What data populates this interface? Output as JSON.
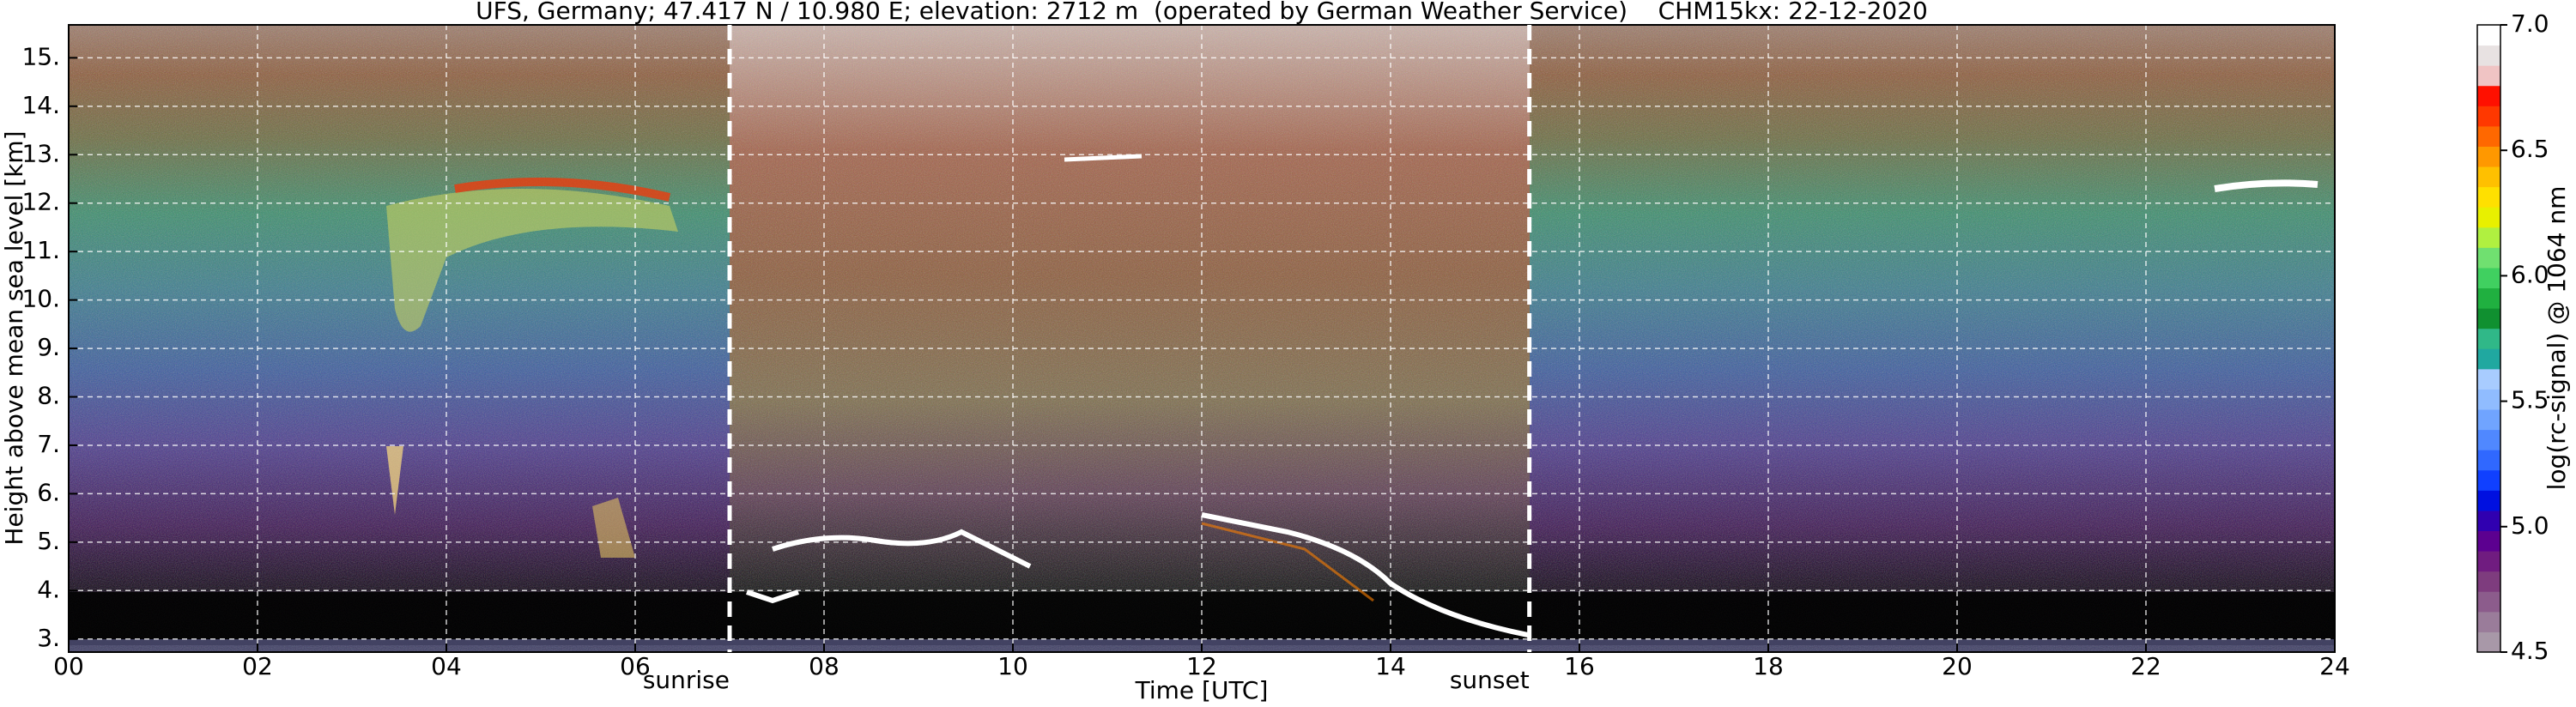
{
  "chart_data": {
    "type": "heatmap",
    "title": "UFS, Germany; 47.417 N / 10.980 E; elevation: 2712 m  (operated by German Weather Service)    CHM15kx: 22-12-2020",
    "xlabel": "Time [UTC]",
    "ylabel": "Height above mean sea level [km]",
    "xlim": [
      0,
      24
    ],
    "xticks": [
      {
        "value": 0,
        "label": "00"
      },
      {
        "value": 2,
        "label": "02"
      },
      {
        "value": 4,
        "label": "04"
      },
      {
        "value": 6,
        "label": "06"
      },
      {
        "value": 8,
        "label": "08"
      },
      10,
      12,
      14,
      16,
      18,
      20,
      22,
      24
    ],
    "ylim": [
      2.73,
      15.68
    ],
    "yticks": [
      {
        "value": 3,
        "label": "3."
      },
      {
        "value": 4,
        "label": "4."
      },
      {
        "value": 5,
        "label": "5."
      },
      {
        "value": 6,
        "label": "6."
      },
      {
        "value": 7,
        "label": "7."
      },
      {
        "value": 8,
        "label": "8."
      },
      {
        "value": 9,
        "label": "9."
      },
      {
        "value": 10,
        "label": "10."
      },
      {
        "value": 11,
        "label": "11."
      },
      {
        "value": 12,
        "label": "12."
      },
      {
        "value": 13,
        "label": "13."
      },
      {
        "value": 14,
        "label": "14."
      },
      {
        "value": 15,
        "label": "15."
      }
    ],
    "grid": true,
    "annotations": [
      {
        "text": "sunrise",
        "x": 7.0
      },
      {
        "text": "sunset",
        "x": 15.47
      }
    ],
    "colorbar": {
      "label": "log(rc-signal) @ 1064 nm",
      "lim": [
        4.5,
        7.0
      ],
      "ticks": [
        4.5,
        {
          "value": 5.0,
          "label": "5.0"
        },
        5.5,
        {
          "value": 6.0,
          "label": "6.0"
        },
        6.5,
        {
          "value": 7.0,
          "label": "7.0"
        }
      ],
      "colors": [
        "#a898a8",
        "#9a7c9a",
        "#8c5c8c",
        "#7e3c7e",
        "#701c80",
        "#5c0090",
        "#3000b0",
        "#0010e0",
        "#1040ff",
        "#3068ff",
        "#5088ff",
        "#70a4ff",
        "#90bcff",
        "#a8ccff",
        "#20a8a0",
        "#30b888",
        "#109030",
        "#20b040",
        "#40d060",
        "#70e070",
        "#b0f040",
        "#e8f000",
        "#ffe000",
        "#ffc000",
        "#ff9800",
        "#ff6800",
        "#ff3800",
        "#ff1000",
        "#f0c4c4",
        "#e8e2e2",
        "#ffffff"
      ]
    }
  }
}
